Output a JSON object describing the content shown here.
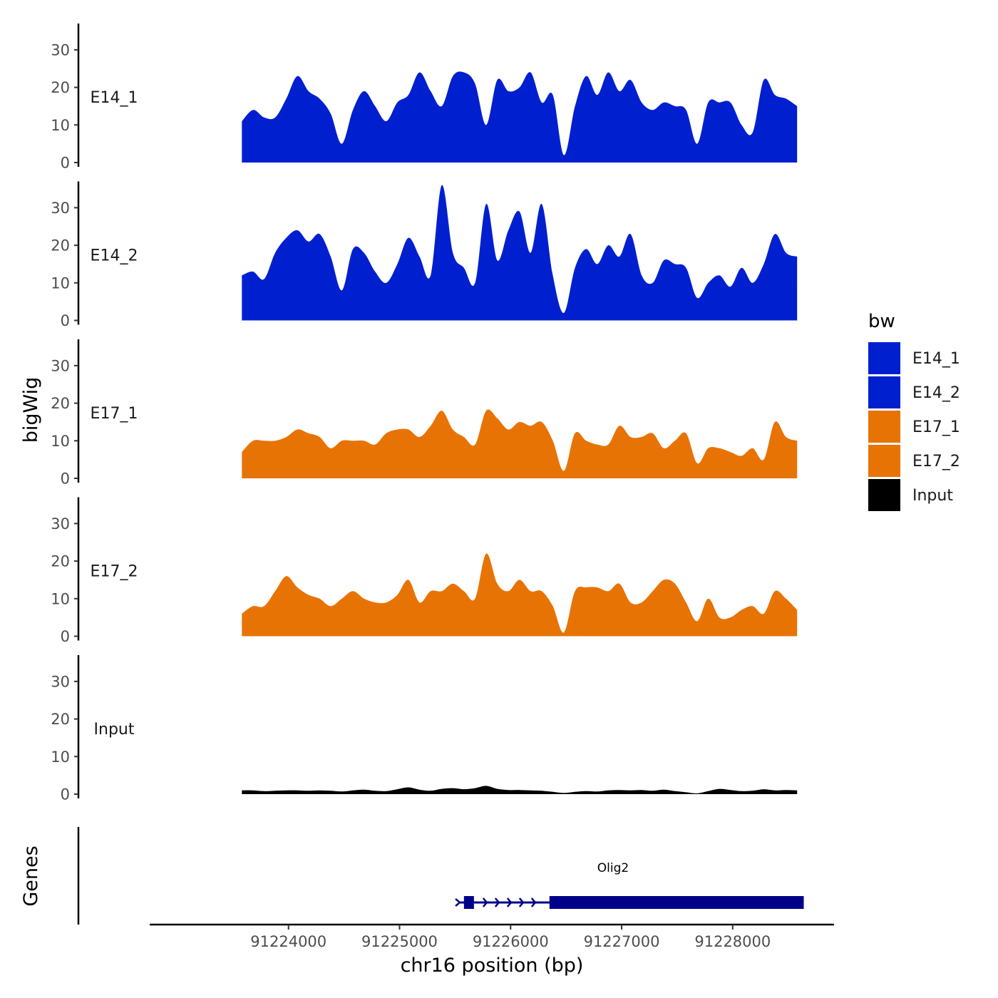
{
  "chart_data": {
    "type": "area",
    "ylabel": "bigWig",
    "xlabel": "chr16 position (bp)",
    "ylim": [
      0,
      37
    ],
    "y_ticks": [
      0,
      10,
      20,
      30
    ],
    "x_range": [
      91222750,
      91228900
    ],
    "x_ticks": [
      {
        "value": 91224000,
        "label": "91224000"
      },
      {
        "value": 91225000,
        "label": "91225000"
      },
      {
        "value": 91226000,
        "label": "91226000"
      },
      {
        "value": 91227000,
        "label": "91227000"
      },
      {
        "value": 91228000,
        "label": "91228000"
      }
    ],
    "x_positions": [
      91223580,
      91223680,
      91223780,
      91223880,
      91223980,
      91224080,
      91224180,
      91224280,
      91224380,
      91224480,
      91224580,
      91224680,
      91224780,
      91224880,
      91224980,
      91225080,
      91225180,
      91225280,
      91225380,
      91225480,
      91225580,
      91225680,
      91225780,
      91225880,
      91225980,
      91226080,
      91226180,
      91226280,
      91226380,
      91226480,
      91226580,
      91226680,
      91226780,
      91226880,
      91226980,
      91227080,
      91227180,
      91227280,
      91227380,
      91227480,
      91227580,
      91227680,
      91227780,
      91227880,
      91227980,
      91228080,
      91228180,
      91228280,
      91228380,
      91228480,
      91228580
    ],
    "series": [
      {
        "name": "E14_1",
        "group": "E14",
        "values": [
          11,
          14,
          12,
          12,
          17,
          23,
          19,
          17,
          13,
          5,
          14,
          19,
          15,
          11,
          16,
          18,
          24,
          19,
          15,
          23,
          24,
          21,
          10,
          22,
          19,
          20,
          24,
          16,
          18,
          2,
          15,
          23,
          18,
          24,
          19,
          22,
          16,
          14,
          16,
          15,
          14,
          5,
          16,
          16,
          16,
          10,
          8,
          22,
          18,
          17,
          15
        ]
      },
      {
        "name": "E14_2",
        "group": "E14",
        "values": [
          12,
          13,
          11,
          18,
          22,
          24,
          21,
          23,
          17,
          8,
          19,
          18,
          13,
          10,
          15,
          22,
          17,
          12,
          36,
          18,
          14,
          10,
          31,
          16,
          24,
          29,
          18,
          31,
          12,
          2,
          14,
          19,
          15,
          20,
          17,
          23,
          12,
          10,
          16,
          15,
          14,
          6,
          10,
          12,
          9,
          14,
          10,
          15,
          23,
          18,
          17
        ]
      },
      {
        "name": "E17_1",
        "group": "E17",
        "values": [
          7,
          10,
          10,
          10,
          11,
          13,
          12,
          11,
          8,
          10,
          10,
          10,
          9,
          12,
          13,
          13,
          11,
          14,
          18,
          13,
          11,
          9,
          18,
          16,
          13,
          15,
          14,
          15,
          10,
          2,
          12,
          10,
          9,
          9,
          14,
          11,
          11,
          12,
          8,
          10,
          12,
          4,
          8,
          8,
          7,
          6,
          8,
          5,
          15,
          11,
          10
        ]
      },
      {
        "name": "E17_2",
        "group": "E17",
        "values": [
          6,
          8,
          8,
          12,
          16,
          13,
          11,
          10,
          8,
          10,
          12,
          10,
          9,
          9,
          11,
          15,
          9,
          12,
          12,
          14,
          12,
          10,
          22,
          14,
          12,
          15,
          12,
          12,
          8,
          1,
          12,
          13,
          13,
          12,
          14,
          9,
          9,
          12,
          15,
          14,
          9,
          4,
          10,
          5,
          5,
          7,
          8,
          6,
          12,
          10,
          7
        ]
      },
      {
        "name": "Input",
        "group": "Input",
        "values": [
          1,
          1,
          0.8,
          0.9,
          1,
          1,
          0.9,
          1,
          0.9,
          0.7,
          1,
          1.2,
          0.9,
          0.8,
          1.3,
          1.8,
          1.2,
          0.9,
          1.4,
          1.6,
          1.3,
          1.6,
          2.2,
          1.4,
          1.1,
          1.1,
          1,
          0.9,
          0.6,
          0.3,
          0.6,
          0.8,
          0.7,
          1,
          1.1,
          1,
          1.1,
          0.9,
          1.2,
          0.8,
          0.5,
          0.2,
          0.8,
          1.4,
          1.1,
          0.8,
          0.9,
          1.3,
          1,
          1.1,
          1
        ]
      }
    ],
    "legend": {
      "title": "bw",
      "position": "right",
      "entries": [
        {
          "label": "E14_1",
          "color": "#0020d0"
        },
        {
          "label": "E14_2",
          "color": "#0020d0"
        },
        {
          "label": "E17_1",
          "color": "#e87305"
        },
        {
          "label": "E17_2",
          "color": "#e87305"
        },
        {
          "label": "Input",
          "color": "#000000"
        }
      ]
    },
    "genes_track": {
      "title": "Genes",
      "color": "#00008b",
      "genes": [
        {
          "name": "Olig2",
          "strand": "+",
          "start": 91225530,
          "end": 91228640,
          "exons": [
            {
              "start": 91225580,
              "end": 91225670
            },
            {
              "start": 91226350,
              "end": 91228640
            }
          ]
        }
      ]
    }
  }
}
